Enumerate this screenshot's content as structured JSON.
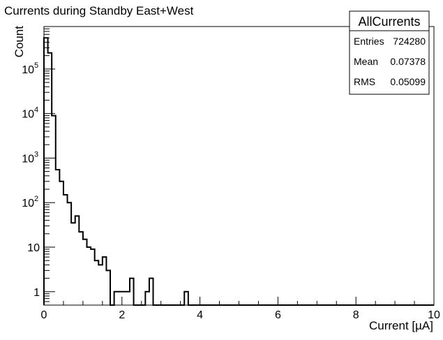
{
  "chart_data": {
    "type": "histogram",
    "title": "Currents during Standby East+West",
    "xlabel": "Current [µA]",
    "ylabel": "Count",
    "xlim": [
      0,
      10
    ],
    "ylim": [
      0.5,
      900000
    ],
    "log_y": true,
    "grid": false,
    "bin_width": 0.1,
    "x_ticks": [
      {
        "value": 0,
        "label": "0"
      },
      {
        "value": 2,
        "label": "2"
      },
      {
        "value": 4,
        "label": "4"
      },
      {
        "value": 6,
        "label": "6"
      },
      {
        "value": 8,
        "label": "8"
      },
      {
        "value": 10,
        "label": "10"
      }
    ],
    "y_ticks": [
      {
        "value": 1,
        "label": "1"
      },
      {
        "value": 10,
        "label": "10"
      },
      {
        "value": 100,
        "base": "10",
        "exp": "2"
      },
      {
        "value": 1000,
        "base": "10",
        "exp": "3"
      },
      {
        "value": 10000,
        "base": "10",
        "exp": "4"
      },
      {
        "value": 100000,
        "base": "10",
        "exp": "5"
      }
    ],
    "bin_starts": [
      0.0,
      0.1,
      0.2,
      0.3,
      0.4,
      0.5,
      0.6,
      0.7,
      0.8,
      0.9,
      1.0,
      1.1,
      1.2,
      1.3,
      1.4,
      1.5,
      1.6,
      1.8,
      1.9,
      2.0,
      2.1,
      2.2,
      2.6,
      2.7,
      3.6
    ],
    "counts": [
      500000,
      230000,
      9000,
      550,
      300,
      150,
      100,
      35,
      50,
      22,
      15,
      10,
      9,
      5,
      4,
      6,
      3,
      1,
      1,
      1,
      1,
      2,
      1,
      2,
      1
    ],
    "stats_box": {
      "title": "AllCurrents",
      "rows": [
        {
          "label": "Entries",
          "value": "724280"
        },
        {
          "label": "Mean",
          "value": "0.07378"
        },
        {
          "label": "RMS",
          "value": "0.05099"
        }
      ]
    }
  }
}
